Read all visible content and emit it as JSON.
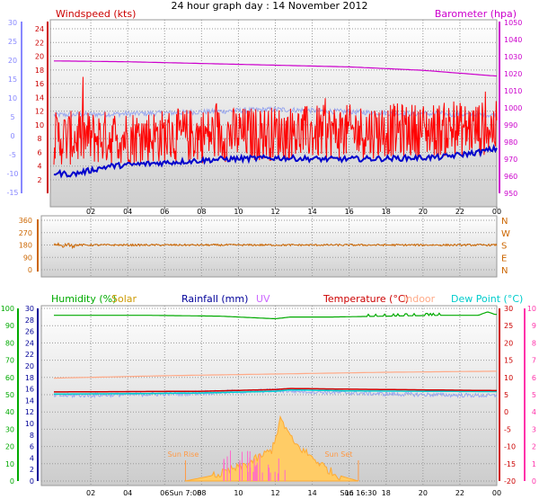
{
  "title": "24 hour graph day : 14 November 2012",
  "colors": {
    "wind": "#ff0000",
    "gust": "#ff0000",
    "wind_avg": "#0000cc",
    "barometer": "#cc00cc",
    "dir": "#cc6600",
    "humidity": "#00aa00",
    "solar": "#cc9900",
    "rainfall": "#000099",
    "uv": "#cc66ff",
    "temperature": "#cc0000",
    "indoor": "#ffaa88",
    "dewpoint": "#00cccc",
    "temp_blue": "#9aa8ee",
    "axis_blue": "#8888ff",
    "sun": "#ff9944"
  },
  "chart_data": [
    {
      "type": "line",
      "labels": {
        "windspeed": "Windspeed (kts)",
        "barometer": "Barometer (hpa)"
      },
      "x_ticks": [
        "02",
        "04",
        "06",
        "08",
        "10",
        "12",
        "14",
        "16",
        "18",
        "20",
        "22",
        "00"
      ],
      "left_axis_outer": {
        "color": "blue",
        "ticks": [
          "30",
          "25",
          "20",
          "15",
          "10",
          "5",
          "0",
          "-5",
          "-10",
          "-15"
        ]
      },
      "left_axis_inner": {
        "color": "red",
        "ticks": [
          "24",
          "22",
          "20",
          "18",
          "16",
          "14",
          "12",
          "10",
          "8",
          "6",
          "4",
          "2"
        ]
      },
      "right_axis": {
        "ticks": [
          "1050",
          "1040",
          "1030",
          "1020",
          "1010",
          "1000",
          "990",
          "980",
          "970",
          "960",
          "950"
        ]
      },
      "series": [
        {
          "name": "Barometer (hpa)",
          "unit": "hpa",
          "x": [
            0,
            4,
            8,
            12,
            16,
            20,
            23.9
          ],
          "values": [
            1027.5,
            1027,
            1026,
            1025,
            1024,
            1022,
            1018.7
          ]
        },
        {
          "name": "Windspeed (kts)",
          "unit": "kts",
          "mean": 8,
          "range": [
            3,
            16
          ]
        },
        {
          "name": "Average wind",
          "unit": "kts",
          "x": [
            0,
            1,
            3,
            6,
            9,
            12,
            15,
            18,
            21,
            23,
            23.9
          ],
          "values": [
            3,
            2.8,
            4,
            4.5,
            5,
            5.2,
            5,
            5.1,
            5.3,
            6,
            6.5
          ]
        },
        {
          "name": "Temperature (blue)",
          "unit": "°C",
          "x": [
            0,
            6,
            12,
            18,
            23.9
          ],
          "values": [
            5.5,
            6,
            7,
            6,
            5.5
          ]
        }
      ]
    },
    {
      "type": "line",
      "y_ticks": [
        "360",
        "270",
        "180",
        "90",
        "0"
      ],
      "direction_labels": [
        "N",
        "W",
        "S",
        "E",
        "N"
      ],
      "series": [
        {
          "name": "Wind direction",
          "unit": "deg",
          "mean": 180,
          "range": [
            165,
            205
          ]
        }
      ]
    },
    {
      "type": "line",
      "labels": {
        "humidity": "Humidity (%)",
        "solar": "Solar",
        "rainfall": "Rainfall (mm)",
        "uv": "UV",
        "temperature": "Temperature (°C)",
        "indoor": "Indoor",
        "dewpoint": "Dew Point (°C)"
      },
      "x_ticks": [
        "02",
        "04",
        "06",
        "08",
        "10",
        "12",
        "14",
        "16",
        "18",
        "20",
        "22",
        "00"
      ],
      "sun_rise_label": "Sun Rise",
      "sun_set_label": "Sun Set",
      "sun_rise_axis": "Sun 7:08",
      "sun_set_axis": "Sun 16:30",
      "sun_rise_hour": 7.13,
      "sun_set_hour": 16.5,
      "humidity_axis": [
        "100",
        "90",
        "80",
        "70",
        "60",
        "50",
        "40",
        "30",
        "20",
        "10",
        "0"
      ],
      "rain_axis": [
        "30",
        "28",
        "26",
        "24",
        "22",
        "20",
        "18",
        "16",
        "14",
        "12",
        "10",
        "8",
        "6",
        "4",
        "2",
        "0"
      ],
      "temp_axis": [
        "30",
        "25",
        "20",
        "15",
        "10",
        "5",
        "0",
        "-5",
        "-10",
        "-15",
        "-20"
      ],
      "uv_axis": [
        "10",
        "9",
        "8",
        "7",
        "6",
        "5",
        "4",
        "3",
        "2",
        "1",
        "0"
      ],
      "series": [
        {
          "name": "Humidity (%)",
          "unit": "%",
          "x": [
            0,
            5,
            9,
            12,
            12.8,
            15,
            18,
            21,
            23,
            23.5,
            23.9
          ],
          "values": [
            96,
            96,
            95.5,
            94,
            95,
            95,
            95.5,
            96,
            96,
            98,
            96.5
          ]
        },
        {
          "name": "Indoor",
          "unit": "°C",
          "x": [
            0,
            6,
            12,
            18,
            23.9
          ],
          "values": [
            9.8,
            10.5,
            11,
            11.5,
            11.8
          ]
        },
        {
          "name": "Temperature (°C)",
          "unit": "°C",
          "x": [
            0,
            4,
            8,
            12,
            12.8,
            16,
            20,
            23.9
          ],
          "values": [
            5.8,
            5.9,
            6,
            6.5,
            6.8,
            6.6,
            6.4,
            6.2
          ]
        },
        {
          "name": "Dew Point (°C)",
          "unit": "°C",
          "x": [
            0,
            4,
            8,
            12,
            12.8,
            16,
            20,
            23.9
          ],
          "values": [
            5.2,
            5.3,
            5.5,
            6,
            6.4,
            6.1,
            6,
            5.9
          ]
        },
        {
          "name": "Solar",
          "x": [
            7.1,
            9,
            10.5,
            11.8,
            12.3,
            13,
            14.2,
            15.2,
            16.5
          ],
          "values": [
            0,
            0.4,
            1.0,
            1.8,
            3.6,
            2.2,
            1.2,
            0.4,
            0
          ]
        }
      ]
    }
  ]
}
